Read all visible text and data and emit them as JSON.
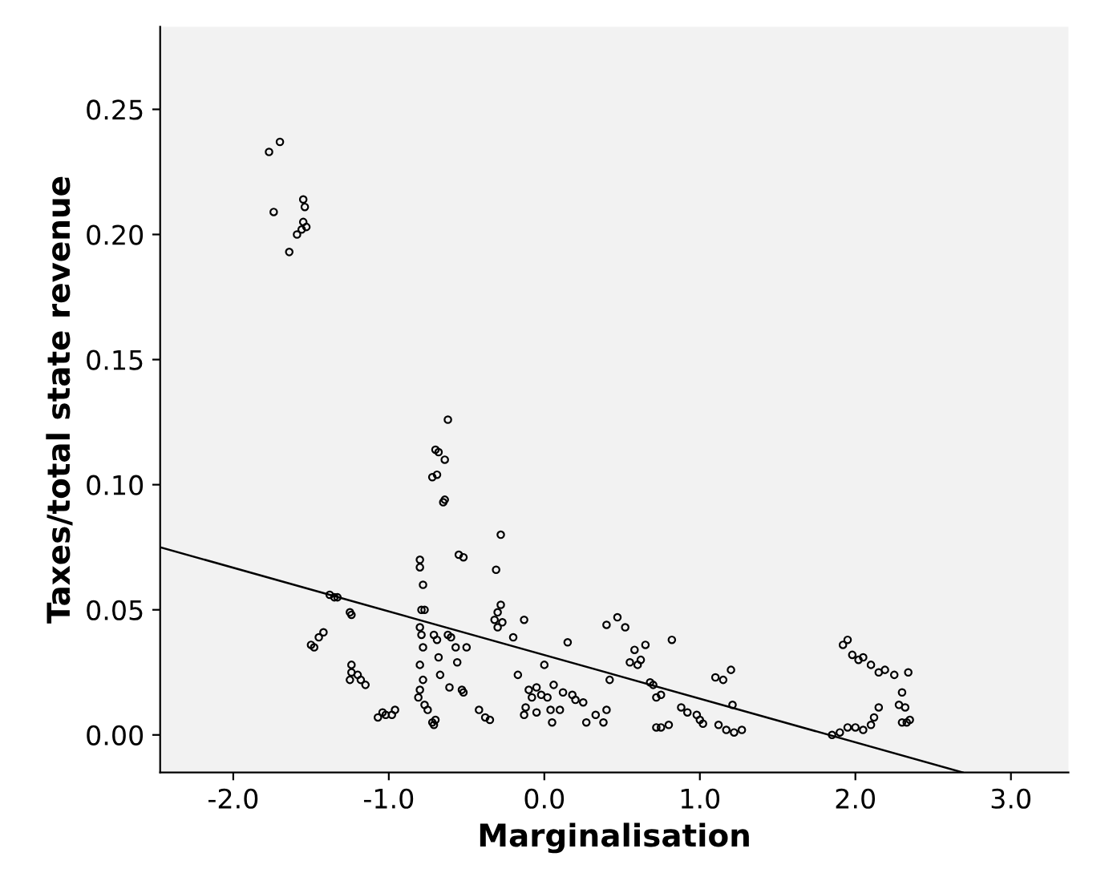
{
  "chart_data": {
    "type": "scatter",
    "xlabel": "Marginalisation",
    "ylabel": "Taxes/total state revenue",
    "xlim": [
      -2.47,
      3.37
    ],
    "ylim": [
      -0.015,
      0.283
    ],
    "xticks": [
      {
        "value": -2,
        "label": "-2.0"
      },
      {
        "value": -1,
        "label": "-1.0"
      },
      {
        "value": 0,
        "label": "0.0"
      },
      {
        "value": 1,
        "label": "1.0"
      },
      {
        "value": 2,
        "label": "2.0"
      },
      {
        "value": 3,
        "label": "3.0"
      }
    ],
    "yticks": [
      {
        "value": 0,
        "label": "0.00"
      },
      {
        "value": 0.05,
        "label": "0.05"
      },
      {
        "value": 0.1,
        "label": "0.10"
      },
      {
        "value": 0.15,
        "label": "0.15"
      },
      {
        "value": 0.2,
        "label": "0.20"
      },
      {
        "value": 0.25,
        "label": "0.25"
      }
    ],
    "grid": false,
    "marker": "circle",
    "series": [
      {
        "color": "#000000",
        "x": [
          -1.77,
          -1.7,
          -1.74,
          -1.64,
          -1.59,
          -1.55,
          -1.54,
          -1.55,
          -1.56,
          -1.53,
          -0.62,
          -0.68,
          -0.7,
          -0.72,
          -0.69,
          -0.64,
          -0.65,
          -0.64,
          -0.55,
          -0.52,
          -0.28,
          -0.31,
          -1.38,
          -1.35,
          -1.33,
          -1.42,
          -1.45,
          -1.48,
          -1.5,
          -1.25,
          -1.24,
          -1.25,
          -1.24,
          -1.24,
          -1.18,
          -1.15,
          -1.2,
          -1.07,
          -1.04,
          -1.02,
          -0.98,
          -0.96,
          -0.8,
          -0.8,
          -0.78,
          -0.79,
          -0.77,
          -0.8,
          -0.79,
          -0.78,
          -0.8,
          -0.78,
          -0.8,
          -0.81,
          -0.77,
          -0.75,
          -0.72,
          -0.71,
          -0.7,
          -0.71,
          -0.69,
          -0.68,
          -0.67,
          -0.62,
          -0.6,
          -0.57,
          -0.56,
          -0.53,
          -0.52,
          -0.61,
          -0.5,
          -0.42,
          -0.38,
          -0.35,
          -0.28,
          -0.3,
          -0.32,
          -0.3,
          -0.27,
          -0.2,
          -0.13,
          -0.17,
          -0.13,
          -0.12,
          -0.1,
          -0.08,
          -0.05,
          -0.02,
          0.02,
          0.04,
          0.05,
          0.0,
          -0.05,
          0.06,
          0.1,
          0.12,
          0.15,
          0.18,
          0.2,
          0.25,
          0.27,
          0.33,
          0.38,
          0.4,
          0.42,
          0.4,
          0.47,
          0.52,
          0.55,
          0.58,
          0.6,
          0.62,
          0.65,
          0.68,
          0.7,
          0.72,
          0.75,
          0.72,
          0.75,
          0.8,
          0.82,
          0.88,
          0.92,
          0.98,
          1.0,
          1.02,
          1.1,
          1.15,
          1.2,
          1.21,
          1.12,
          1.17,
          1.22,
          1.27,
          1.85,
          1.9,
          1.95,
          2.0,
          2.05,
          2.1,
          2.12,
          2.15,
          1.92,
          1.95,
          1.98,
          2.02,
          2.05,
          2.1,
          2.15,
          2.19,
          2.25,
          2.3,
          2.34,
          2.28,
          2.32,
          2.3,
          2.33,
          2.35
        ],
        "values": [
          0.233,
          0.237,
          0.209,
          0.193,
          0.2,
          0.214,
          0.211,
          0.205,
          0.202,
          0.203,
          0.126,
          0.113,
          0.114,
          0.103,
          0.104,
          0.11,
          0.093,
          0.094,
          0.072,
          0.071,
          0.08,
          0.066,
          0.056,
          0.055,
          0.055,
          0.041,
          0.039,
          0.035,
          0.036,
          0.049,
          0.048,
          0.022,
          0.025,
          0.028,
          0.022,
          0.02,
          0.024,
          0.007,
          0.009,
          0.008,
          0.008,
          0.01,
          0.07,
          0.067,
          0.06,
          0.05,
          0.05,
          0.043,
          0.04,
          0.035,
          0.028,
          0.022,
          0.018,
          0.015,
          0.012,
          0.01,
          0.005,
          0.004,
          0.006,
          0.04,
          0.038,
          0.031,
          0.024,
          0.04,
          0.039,
          0.035,
          0.029,
          0.018,
          0.017,
          0.019,
          0.035,
          0.01,
          0.007,
          0.006,
          0.052,
          0.049,
          0.046,
          0.043,
          0.045,
          0.039,
          0.046,
          0.024,
          0.008,
          0.011,
          0.018,
          0.015,
          0.019,
          0.016,
          0.015,
          0.01,
          0.005,
          0.028,
          0.009,
          0.02,
          0.01,
          0.017,
          0.037,
          0.016,
          0.014,
          0.013,
          0.005,
          0.008,
          0.005,
          0.01,
          0.022,
          0.044,
          0.047,
          0.043,
          0.029,
          0.034,
          0.028,
          0.03,
          0.036,
          0.021,
          0.02,
          0.015,
          0.016,
          0.003,
          0.003,
          0.004,
          0.038,
          0.011,
          0.009,
          0.008,
          0.006,
          0.0045,
          0.023,
          0.022,
          0.026,
          0.012,
          0.004,
          0.002,
          0.001,
          0.002,
          0.0,
          0.001,
          0.003,
          0.003,
          0.002,
          0.004,
          0.007,
          0.011,
          0.036,
          0.038,
          0.032,
          0.03,
          0.031,
          0.028,
          0.025,
          0.026,
          0.024,
          0.017,
          0.025,
          0.012,
          0.011,
          0.005,
          0.005,
          0.006
        ]
      },
      {
        "type": "line",
        "color": "#000000",
        "marker": "none",
        "line_style": "solid",
        "x": [
          -2.47,
          2.69
        ],
        "values": [
          0.075,
          -0.015
        ]
      }
    ]
  }
}
